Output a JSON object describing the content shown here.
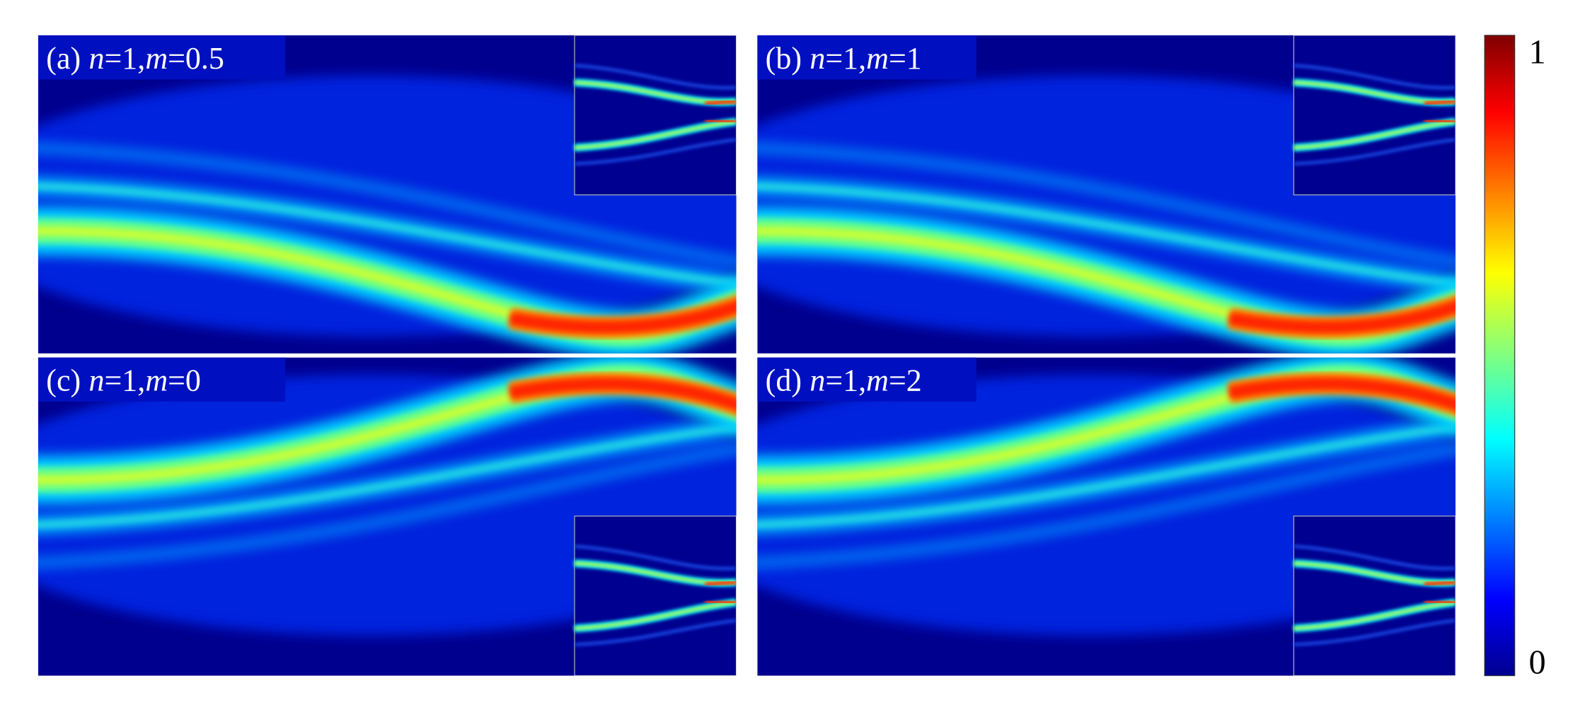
{
  "panels": [
    {
      "label_parts": [
        "(a)",
        "n",
        "=1,",
        "m",
        "=0.5"
      ]
    },
    {
      "label_parts": [
        "(b)",
        "n",
        "=1,",
        "m",
        "=1"
      ]
    },
    {
      "label_parts": [
        "(c)",
        "n",
        "=1,",
        "m",
        "=0"
      ]
    },
    {
      "label_parts": [
        "(d)",
        "n",
        "=1,",
        "m",
        "=2"
      ]
    }
  ],
  "colorbar": {
    "ticks": [
      0,
      1
    ]
  }
}
